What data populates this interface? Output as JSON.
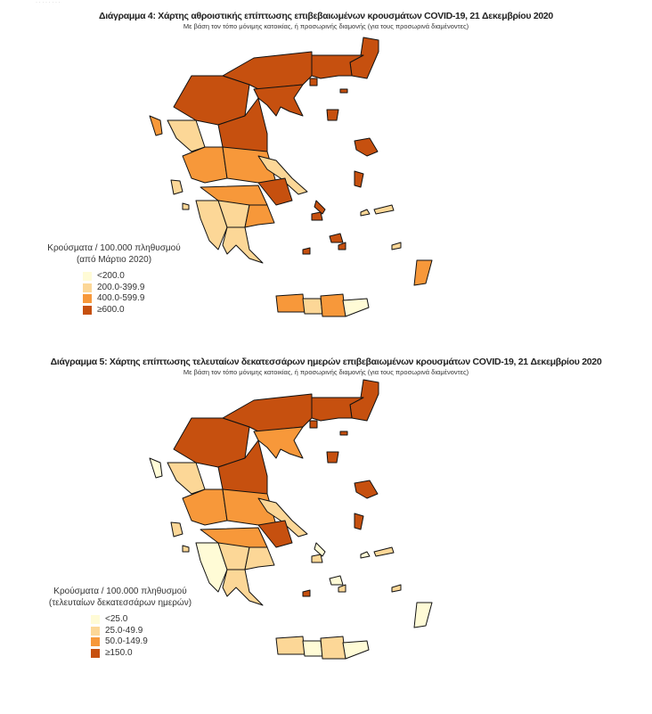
{
  "colors": [
    "#fffbd6",
    "#fcd797",
    "#f7983a",
    "#c6500f"
  ],
  "map4": {
    "title": "Διάγραμμα 4: Χάρτης αθροιστικής επίπτωσης επιβεβαιωμένων κρουσμάτων COVID-19, 21 Δεκεμβρίου 2020",
    "subtitle": "Με βάση τον τόπο μόνιμης κατοικίας, ή προσωρινής διαμονής (για τους προσωρινά διαμένοντες)",
    "legend": {
      "title_line1": "Κρούσματα / 100.000 πληθυσμού",
      "title_line2": "(από Μάρτιο 2020)",
      "items": [
        "<200.0",
        "200.0-399.9",
        "400.0-599.9",
        "≥600.0"
      ]
    },
    "region_classes": [
      3,
      3,
      3,
      3,
      3,
      3,
      1,
      2,
      2,
      1,
      3,
      2,
      1,
      1,
      2,
      1,
      2,
      1,
      1,
      3,
      3,
      3,
      3,
      3,
      2,
      2,
      1,
      2,
      0,
      3,
      3,
      3,
      3,
      3,
      1,
      1,
      1
    ]
  },
  "map5": {
    "title": "Διάγραμμα 5: Χάρτης επίπτωσης τελευταίων δεκατεσσάρων ημερών επιβεβαιωμένων κρουσμάτων COVID-19, 21 Δεκεμβρίου 2020",
    "subtitle": "Με βάση τον τόπο μόνιμης κατοικίας, ή προσωρινής διαμονής (για τους προσωρινά διαμένοντες)",
    "legend": {
      "title_line1": "Κρούσματα / 100.000 πληθυσμού",
      "title_line2": "(τελευταίων δεκατεσσάρων ημερών)",
      "items": [
        "<25.0",
        "25.0-49.9",
        "50.0-149.9",
        "≥150.0"
      ]
    },
    "region_classes": [
      3,
      3,
      3,
      3,
      2,
      3,
      1,
      2,
      2,
      1,
      3,
      2,
      0,
      1,
      1,
      1,
      0,
      1,
      1,
      3,
      3,
      3,
      3,
      3,
      0,
      1,
      0,
      1,
      0,
      1,
      0,
      3,
      1,
      0,
      1,
      0,
      1
    ]
  }
}
